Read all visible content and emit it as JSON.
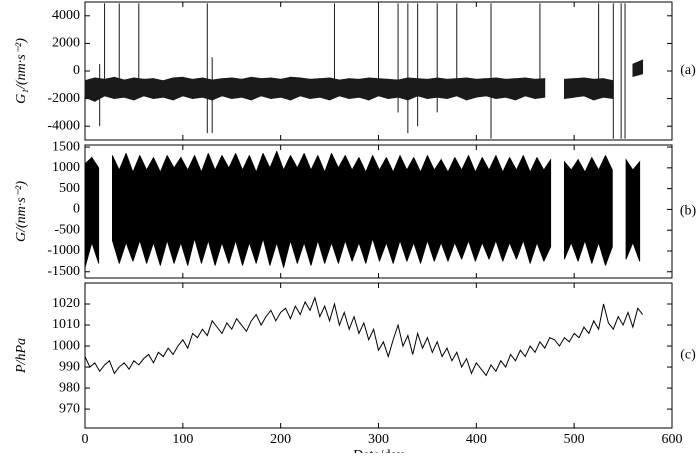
{
  "chart_data": [
    {
      "type": "band",
      "ylabel": "G₁/(nm·s⁻²)",
      "panel_label": "(a)",
      "xlim": [
        0,
        600
      ],
      "ylim": [
        -5000,
        5000
      ],
      "yticks": [
        -4000,
        -2000,
        0,
        2000,
        4000
      ],
      "x": [
        0,
        10,
        20,
        30,
        40,
        50,
        60,
        70,
        80,
        90,
        100,
        110,
        120,
        130,
        140,
        150,
        160,
        170,
        180,
        190,
        200,
        210,
        220,
        230,
        240,
        250,
        260,
        270,
        280,
        290,
        300,
        310,
        320,
        330,
        340,
        350,
        360,
        370,
        380,
        390,
        400,
        410,
        420,
        430,
        440,
        450,
        460,
        470,
        480,
        490,
        500,
        510,
        520,
        530,
        540,
        550,
        560,
        570
      ],
      "series": [
        {
          "color": "#1a1a1a",
          "values": [
            -700,
            -500,
            -600,
            -450,
            -650,
            -500,
            -600,
            -550,
            -700,
            -500,
            -450,
            -600,
            -500,
            -650,
            -550,
            -500,
            -600,
            -450,
            -550,
            -500,
            -600,
            -450,
            -500,
            -600,
            -550,
            -500,
            -650,
            -550,
            -600,
            -500,
            -550,
            -600,
            -650,
            -500,
            -550,
            -600,
            -500,
            -600,
            -550,
            -500,
            -600,
            -550,
            -500,
            -600,
            -550,
            -500,
            -600,
            -550,
            null,
            -600,
            -550,
            -500,
            -600,
            -550,
            -700,
            null,
            500,
            800
          ]
        },
        {
          "color": "#1a1a1a",
          "values": [
            -1900,
            -2200,
            -1800,
            -2000,
            -1900,
            -2100,
            -1800,
            -2000,
            -1900,
            -2100,
            -1800,
            -2000,
            -1900,
            -2100,
            -1800,
            -2000,
            -1900,
            -2100,
            -1800,
            -2000,
            -1900,
            -2100,
            -1800,
            -2000,
            -1900,
            -2100,
            -1800,
            -2000,
            -1900,
            -2100,
            -1800,
            -2000,
            -1900,
            -2100,
            -1800,
            -2000,
            -1900,
            -2000,
            -1800,
            -2100,
            -1900,
            -1800,
            -2000,
            -1900,
            -2100,
            -1800,
            -2000,
            -1900,
            null,
            -2000,
            -1900,
            -1800,
            -2100,
            -1900,
            -2000,
            null,
            -400,
            -200
          ]
        }
      ],
      "spikes": {
        "x": [
          15,
          20,
          35,
          55,
          125,
          130,
          255,
          300,
          320,
          330,
          340,
          360,
          380,
          415,
          465,
          525,
          540,
          548,
          552
        ],
        "high": [
          500,
          4900,
          4900,
          4900,
          4900,
          1000,
          4900,
          4900,
          4900,
          4900,
          4900,
          4900,
          4900,
          4900,
          4900,
          4900,
          4900,
          4900,
          4900
        ],
        "low": [
          -4000,
          -1500,
          -1000,
          -1000,
          -4500,
          -4500,
          -1000,
          -1000,
          -3000,
          -4500,
          -4000,
          -3000,
          -1000,
          -4900,
          -1000,
          -1000,
          -4900,
          -4900,
          -4900
        ]
      }
    },
    {
      "type": "band",
      "ylabel": "G/(nm·s⁻²)",
      "panel_label": "(b)",
      "xlim": [
        0,
        600
      ],
      "ylim": [
        -1650,
        1550
      ],
      "yticks": [
        -1500,
        -1000,
        -500,
        0,
        500,
        1000,
        1500
      ],
      "x": [
        0,
        7,
        14,
        21,
        28,
        35,
        42,
        49,
        56,
        63,
        70,
        77,
        84,
        91,
        98,
        105,
        112,
        119,
        126,
        133,
        140,
        147,
        154,
        161,
        168,
        175,
        182,
        189,
        196,
        203,
        210,
        217,
        224,
        231,
        238,
        245,
        252,
        259,
        266,
        273,
        280,
        287,
        294,
        301,
        308,
        315,
        322,
        329,
        336,
        343,
        350,
        357,
        364,
        371,
        378,
        385,
        392,
        399,
        406,
        413,
        420,
        427,
        434,
        441,
        448,
        455,
        462,
        469,
        476,
        483,
        490,
        497,
        504,
        511,
        518,
        525,
        532,
        539,
        546,
        553,
        560,
        567
      ],
      "series": [
        {
          "color": "#000000",
          "values": [
            1100,
            1250,
            1000,
            null,
            1300,
            950,
            1350,
            900,
            1300,
            950,
            1250,
            900,
            1300,
            1000,
            1250,
            950,
            1300,
            900,
            1350,
            950,
            1300,
            1000,
            1350,
            950,
            1300,
            900,
            1350,
            1000,
            1400,
            950,
            1300,
            1000,
            1350,
            950,
            1300,
            900,
            1350,
            1000,
            1300,
            950,
            1250,
            900,
            1300,
            950,
            1250,
            900,
            1300,
            950,
            1250,
            900,
            1300,
            950,
            1200,
            900,
            1250,
            950,
            1300,
            900,
            1250,
            950,
            1300,
            900,
            1250,
            950,
            1300,
            900,
            1250,
            950,
            1200,
            null,
            1150,
            950,
            1200,
            900,
            1250,
            950,
            1300,
            950,
            null,
            1200,
            950,
            1150
          ]
        },
        {
          "color": "#000000",
          "values": [
            -1400,
            -800,
            -1300,
            null,
            -750,
            -1300,
            -800,
            -1250,
            -750,
            -1300,
            -800,
            -1350,
            -750,
            -1300,
            -800,
            -1350,
            -700,
            -1300,
            -750,
            -1350,
            -800,
            -1300,
            -750,
            -1350,
            -800,
            -1300,
            -700,
            -1350,
            -800,
            -1400,
            -750,
            -1300,
            -800,
            -1350,
            -750,
            -1300,
            -800,
            -1300,
            -750,
            -1250,
            -800,
            -1300,
            -700,
            -1250,
            -800,
            -1300,
            -750,
            -1250,
            -800,
            -1300,
            -750,
            -1250,
            -800,
            -1250,
            -800,
            -1200,
            -750,
            -1250,
            -800,
            -1200,
            -750,
            -1250,
            -800,
            -1200,
            -750,
            -1300,
            -800,
            -1250,
            -900,
            null,
            -1200,
            -800,
            -1250,
            -750,
            -1300,
            -800,
            -1350,
            -900,
            null,
            -1200,
            -800,
            -1250
          ]
        }
      ]
    },
    {
      "type": "line",
      "ylabel": "P/hPa",
      "panel_label": "(c)",
      "xlabel": "Date/day",
      "xlim": [
        0,
        600
      ],
      "xticks": [
        0,
        100,
        200,
        300,
        400,
        500,
        600
      ],
      "ylim": [
        961,
        1030
      ],
      "yticks": [
        970,
        980,
        990,
        1000,
        1010,
        1020
      ],
      "x": [
        0,
        5,
        10,
        15,
        20,
        25,
        30,
        35,
        40,
        45,
        50,
        55,
        60,
        65,
        70,
        75,
        80,
        85,
        90,
        95,
        100,
        105,
        110,
        115,
        120,
        125,
        130,
        135,
        140,
        145,
        150,
        155,
        160,
        165,
        170,
        175,
        180,
        185,
        190,
        195,
        200,
        205,
        210,
        215,
        220,
        225,
        230,
        235,
        240,
        245,
        250,
        255,
        260,
        265,
        270,
        275,
        280,
        285,
        290,
        295,
        300,
        305,
        310,
        315,
        320,
        325,
        330,
        335,
        340,
        345,
        350,
        355,
        360,
        365,
        370,
        375,
        380,
        385,
        390,
        395,
        400,
        405,
        410,
        415,
        420,
        425,
        430,
        435,
        440,
        445,
        450,
        455,
        460,
        465,
        470,
        475,
        480,
        485,
        490,
        495,
        500,
        505,
        510,
        515,
        520,
        525,
        530,
        535,
        540,
        545,
        550,
        555,
        560,
        565,
        570
      ],
      "series": [
        {
          "color": "#000000",
          "values": [
            995,
            990,
            992,
            988,
            991,
            993,
            987,
            990,
            992,
            989,
            993,
            991,
            994,
            996,
            992,
            997,
            995,
            999,
            996,
            1000,
            1003,
            999,
            1006,
            1004,
            1008,
            1005,
            1012,
            1009,
            1006,
            1011,
            1008,
            1013,
            1010,
            1007,
            1012,
            1015,
            1010,
            1014,
            1017,
            1012,
            1016,
            1018,
            1013,
            1019,
            1015,
            1021,
            1017,
            1023,
            1014,
            1019,
            1012,
            1020,
            1010,
            1016,
            1008,
            1014,
            1006,
            1011,
            1003,
            1008,
            998,
            1002,
            995,
            1003,
            1010,
            1000,
            1005,
            996,
            1006,
            999,
            1004,
            997,
            1002,
            995,
            999,
            993,
            997,
            990,
            994,
            987,
            992,
            989,
            986,
            991,
            988,
            993,
            990,
            996,
            993,
            998,
            995,
            1000,
            997,
            1002,
            999,
            1004,
            1003,
            1000,
            1004,
            1002,
            1006,
            1004,
            1009,
            1006,
            1012,
            1008,
            1020,
            1011,
            1008,
            1014,
            1010,
            1016,
            1009,
            1018,
            1015
          ]
        }
      ]
    }
  ]
}
